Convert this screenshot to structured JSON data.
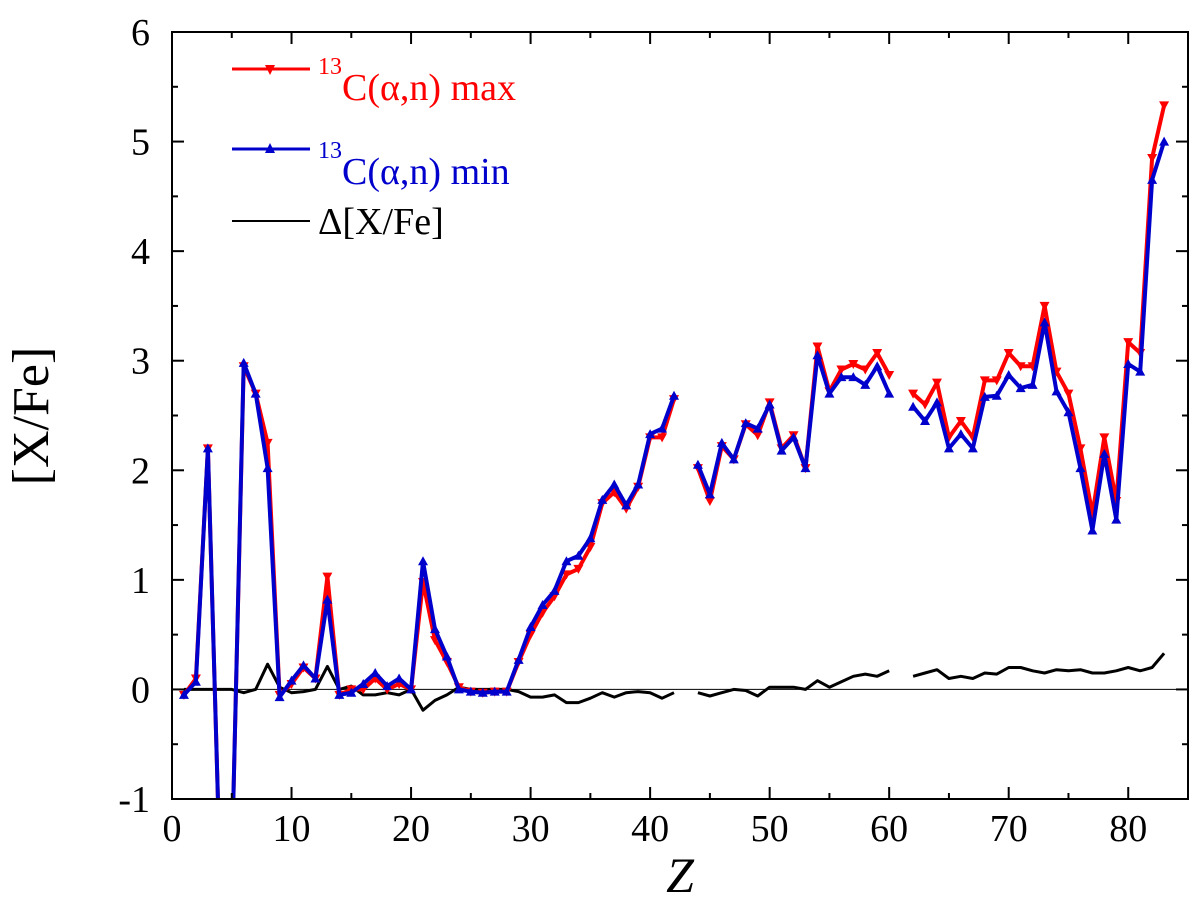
{
  "chart_data": {
    "type": "line",
    "xlabel": "Z",
    "ylabel": "[X/Fe]",
    "xlim": [
      0,
      85
    ],
    "ylim": [
      -1,
      6
    ],
    "x_ticks": [
      0,
      10,
      20,
      30,
      40,
      50,
      60,
      70,
      80
    ],
    "y_ticks": [
      -1,
      0,
      1,
      2,
      3,
      4,
      5,
      6
    ],
    "reference_line_y": 0,
    "legend_position": "top-left",
    "colors": {
      "max": "#ff0000",
      "min": "#0000cc",
      "delta": "#000000"
    },
    "series": [
      {
        "id": "max",
        "legend_main": "C(α,n) max",
        "legend_superscript": "13",
        "marker": "triangle-down",
        "points": [
          [
            1,
            -0.05
          ],
          [
            2,
            0.1
          ],
          [
            3,
            2.2
          ],
          [
            4,
            -1.6
          ],
          [
            5,
            -1.6
          ],
          [
            6,
            2.95
          ],
          [
            7,
            2.7
          ],
          [
            8,
            2.25
          ],
          [
            9,
            -0.05
          ],
          [
            10,
            0.05
          ],
          [
            11,
            0.2
          ],
          [
            12,
            0.1
          ],
          [
            13,
            1.03
          ],
          [
            14,
            -0.05
          ],
          [
            15,
            0.0
          ],
          [
            16,
            0.0
          ],
          [
            17,
            0.1
          ],
          [
            18,
            0.0
          ],
          [
            19,
            0.05
          ],
          [
            20,
            0.0
          ],
          [
            21,
            0.98
          ],
          [
            22,
            0.45
          ],
          [
            23,
            0.25
          ],
          [
            24,
            0.02
          ],
          [
            25,
            -0.02
          ],
          [
            26,
            -0.03
          ],
          [
            27,
            -0.02
          ],
          [
            28,
            -0.02
          ],
          [
            29,
            0.25
          ],
          [
            30,
            0.5
          ],
          [
            31,
            0.7
          ],
          [
            32,
            0.85
          ],
          [
            33,
            1.05
          ],
          [
            34,
            1.1
          ],
          [
            35,
            1.3
          ],
          [
            36,
            1.7
          ],
          [
            37,
            1.8
          ],
          [
            38,
            1.65
          ],
          [
            39,
            1.85
          ],
          [
            40,
            2.3
          ],
          [
            41,
            2.3
          ],
          [
            42,
            2.65
          ],
          [
            43,
            null
          ],
          [
            44,
            2.02
          ],
          [
            45,
            1.72
          ],
          [
            46,
            2.22
          ],
          [
            47,
            2.1
          ],
          [
            48,
            2.42
          ],
          [
            49,
            2.32
          ],
          [
            50,
            2.62
          ],
          [
            51,
            2.2
          ],
          [
            52,
            2.32
          ],
          [
            53,
            2.02
          ],
          [
            54,
            3.13
          ],
          [
            55,
            2.72
          ],
          [
            56,
            2.92
          ],
          [
            57,
            2.97
          ],
          [
            58,
            2.92
          ],
          [
            59,
            3.07
          ],
          [
            60,
            2.87
          ],
          [
            61,
            null
          ],
          [
            62,
            2.7
          ],
          [
            63,
            2.6
          ],
          [
            64,
            2.8
          ],
          [
            65,
            2.3
          ],
          [
            66,
            2.45
          ],
          [
            67,
            2.3
          ],
          [
            68,
            2.82
          ],
          [
            69,
            2.82
          ],
          [
            70,
            3.07
          ],
          [
            71,
            2.95
          ],
          [
            72,
            2.95
          ],
          [
            73,
            3.5
          ],
          [
            74,
            2.9
          ],
          [
            75,
            2.7
          ],
          [
            76,
            2.2
          ],
          [
            77,
            1.6
          ],
          [
            78,
            2.3
          ],
          [
            79,
            1.72
          ],
          [
            80,
            3.17
          ],
          [
            81,
            3.07
          ],
          [
            82,
            4.85
          ],
          [
            83,
            5.33
          ]
        ]
      },
      {
        "id": "min",
        "legend_main": "C(α,n) min",
        "legend_superscript": "13",
        "marker": "triangle-up",
        "points": [
          [
            1,
            -0.05
          ],
          [
            2,
            0.07
          ],
          [
            3,
            2.2
          ],
          [
            4,
            -1.6
          ],
          [
            5,
            -1.6
          ],
          [
            6,
            2.98
          ],
          [
            7,
            2.7
          ],
          [
            8,
            2.02
          ],
          [
            9,
            -0.07
          ],
          [
            10,
            0.08
          ],
          [
            11,
            0.22
          ],
          [
            12,
            0.1
          ],
          [
            13,
            0.82
          ],
          [
            14,
            -0.05
          ],
          [
            15,
            -0.03
          ],
          [
            16,
            0.05
          ],
          [
            17,
            0.15
          ],
          [
            18,
            0.03
          ],
          [
            19,
            0.1
          ],
          [
            20,
            0.0
          ],
          [
            21,
            1.17
          ],
          [
            22,
            0.55
          ],
          [
            23,
            0.3
          ],
          [
            24,
            0.0
          ],
          [
            25,
            -0.02
          ],
          [
            26,
            -0.03
          ],
          [
            27,
            -0.02
          ],
          [
            28,
            -0.02
          ],
          [
            29,
            0.27
          ],
          [
            30,
            0.57
          ],
          [
            31,
            0.77
          ],
          [
            32,
            0.9
          ],
          [
            33,
            1.17
          ],
          [
            34,
            1.22
          ],
          [
            35,
            1.38
          ],
          [
            36,
            1.73
          ],
          [
            37,
            1.87
          ],
          [
            38,
            1.68
          ],
          [
            39,
            1.87
          ],
          [
            40,
            2.33
          ],
          [
            41,
            2.38
          ],
          [
            42,
            2.68
          ],
          [
            43,
            null
          ],
          [
            44,
            2.05
          ],
          [
            45,
            1.78
          ],
          [
            46,
            2.25
          ],
          [
            47,
            2.1
          ],
          [
            48,
            2.43
          ],
          [
            49,
            2.38
          ],
          [
            50,
            2.6
          ],
          [
            51,
            2.18
          ],
          [
            52,
            2.3
          ],
          [
            53,
            2.02
          ],
          [
            54,
            3.05
          ],
          [
            55,
            2.7
          ],
          [
            56,
            2.85
          ],
          [
            57,
            2.85
          ],
          [
            58,
            2.78
          ],
          [
            59,
            2.95
          ],
          [
            60,
            2.7
          ],
          [
            61,
            null
          ],
          [
            62,
            2.58
          ],
          [
            63,
            2.45
          ],
          [
            64,
            2.62
          ],
          [
            65,
            2.2
          ],
          [
            66,
            2.33
          ],
          [
            67,
            2.2
          ],
          [
            68,
            2.67
          ],
          [
            69,
            2.68
          ],
          [
            70,
            2.87
          ],
          [
            71,
            2.75
          ],
          [
            72,
            2.78
          ],
          [
            73,
            3.35
          ],
          [
            74,
            2.72
          ],
          [
            75,
            2.53
          ],
          [
            76,
            2.02
          ],
          [
            77,
            1.45
          ],
          [
            78,
            2.15
          ],
          [
            79,
            1.55
          ],
          [
            80,
            2.97
          ],
          [
            81,
            2.9
          ],
          [
            82,
            4.65
          ],
          [
            83,
            5.0
          ]
        ]
      },
      {
        "id": "delta",
        "legend_main": "Δ[X/Fe]",
        "marker": "none",
        "points": [
          [
            1,
            0.0
          ],
          [
            2,
            0.0
          ],
          [
            3,
            0.0
          ],
          [
            4,
            0.0
          ],
          [
            5,
            0.0
          ],
          [
            6,
            -0.03
          ],
          [
            7,
            0.0
          ],
          [
            8,
            0.23
          ],
          [
            9,
            0.02
          ],
          [
            10,
            -0.03
          ],
          [
            11,
            -0.02
          ],
          [
            12,
            0.0
          ],
          [
            13,
            0.21
          ],
          [
            14,
            0.0
          ],
          [
            15,
            0.03
          ],
          [
            16,
            -0.05
          ],
          [
            17,
            -0.05
          ],
          [
            18,
            -0.03
          ],
          [
            19,
            -0.05
          ],
          [
            20,
            0.0
          ],
          [
            21,
            -0.19
          ],
          [
            22,
            -0.1
          ],
          [
            23,
            -0.05
          ],
          [
            24,
            0.02
          ],
          [
            25,
            0.0
          ],
          [
            26,
            0.0
          ],
          [
            27,
            0.0
          ],
          [
            28,
            0.0
          ],
          [
            29,
            -0.02
          ],
          [
            30,
            -0.07
          ],
          [
            31,
            -0.07
          ],
          [
            32,
            -0.05
          ],
          [
            33,
            -0.12
          ],
          [
            34,
            -0.12
          ],
          [
            35,
            -0.08
          ],
          [
            36,
            -0.03
          ],
          [
            37,
            -0.07
          ],
          [
            38,
            -0.03
          ],
          [
            39,
            -0.02
          ],
          [
            40,
            -0.03
          ],
          [
            41,
            -0.08
          ],
          [
            42,
            -0.03
          ],
          [
            43,
            null
          ],
          [
            44,
            -0.03
          ],
          [
            45,
            -0.06
          ],
          [
            46,
            -0.03
          ],
          [
            47,
            0.0
          ],
          [
            48,
            -0.01
          ],
          [
            49,
            -0.06
          ],
          [
            50,
            0.02
          ],
          [
            51,
            0.02
          ],
          [
            52,
            0.02
          ],
          [
            53,
            0.0
          ],
          [
            54,
            0.08
          ],
          [
            55,
            0.02
          ],
          [
            56,
            0.07
          ],
          [
            57,
            0.12
          ],
          [
            58,
            0.14
          ],
          [
            59,
            0.12
          ],
          [
            60,
            0.17
          ],
          [
            61,
            null
          ],
          [
            62,
            0.12
          ],
          [
            63,
            0.15
          ],
          [
            64,
            0.18
          ],
          [
            65,
            0.1
          ],
          [
            66,
            0.12
          ],
          [
            67,
            0.1
          ],
          [
            68,
            0.15
          ],
          [
            69,
            0.14
          ],
          [
            70,
            0.2
          ],
          [
            71,
            0.2
          ],
          [
            72,
            0.17
          ],
          [
            73,
            0.15
          ],
          [
            74,
            0.18
          ],
          [
            75,
            0.17
          ],
          [
            76,
            0.18
          ],
          [
            77,
            0.15
          ],
          [
            78,
            0.15
          ],
          [
            79,
            0.17
          ],
          [
            80,
            0.2
          ],
          [
            81,
            0.17
          ],
          [
            82,
            0.2
          ],
          [
            83,
            0.33
          ]
        ]
      }
    ]
  }
}
